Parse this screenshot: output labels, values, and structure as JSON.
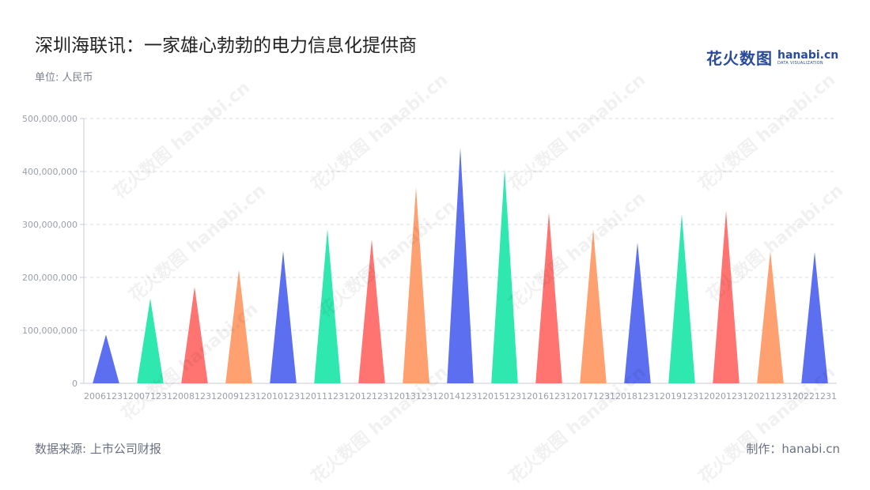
{
  "title": "深圳海联讯：一家雄心勃勃的电力信息化提供商",
  "unit_label": "单位: 人民币",
  "brand": {
    "cn": "花火数图",
    "en": "hanabi.cn",
    "sub": "DATA VISUALIZATION"
  },
  "watermark": "花火数图 hanabi.cn",
  "footer": {
    "source": "数据来源: 上市公司财报",
    "credit": "制作：hanabi.cn"
  },
  "colors": [
    "#5b6ff0",
    "#2ee8b0",
    "#ff7470",
    "#ffa070"
  ],
  "chart_data": {
    "type": "bar",
    "bar_shape": "triangle",
    "categories": [
      "20061231",
      "20071231",
      "20081231",
      "20091231",
      "20101231",
      "20111231",
      "20121231",
      "20131231",
      "20141231",
      "20151231",
      "20161231",
      "20171231",
      "20181231",
      "20191231",
      "20201231",
      "20211231",
      "20221231"
    ],
    "values": [
      92000000,
      160000000,
      182000000,
      215000000,
      250000000,
      291000000,
      272000000,
      370000000,
      445000000,
      405000000,
      323000000,
      291000000,
      266000000,
      320000000,
      326000000,
      250000000,
      248000000
    ],
    "ylim": [
      0,
      500000000
    ],
    "yticks": [
      0,
      100000000,
      200000000,
      300000000,
      400000000,
      500000000
    ],
    "ytick_labels": [
      "0",
      "100,000,000",
      "200,000,000",
      "300,000,000",
      "400,000,000",
      "500,000,000"
    ],
    "grid": true,
    "xlabel": "",
    "ylabel": ""
  }
}
